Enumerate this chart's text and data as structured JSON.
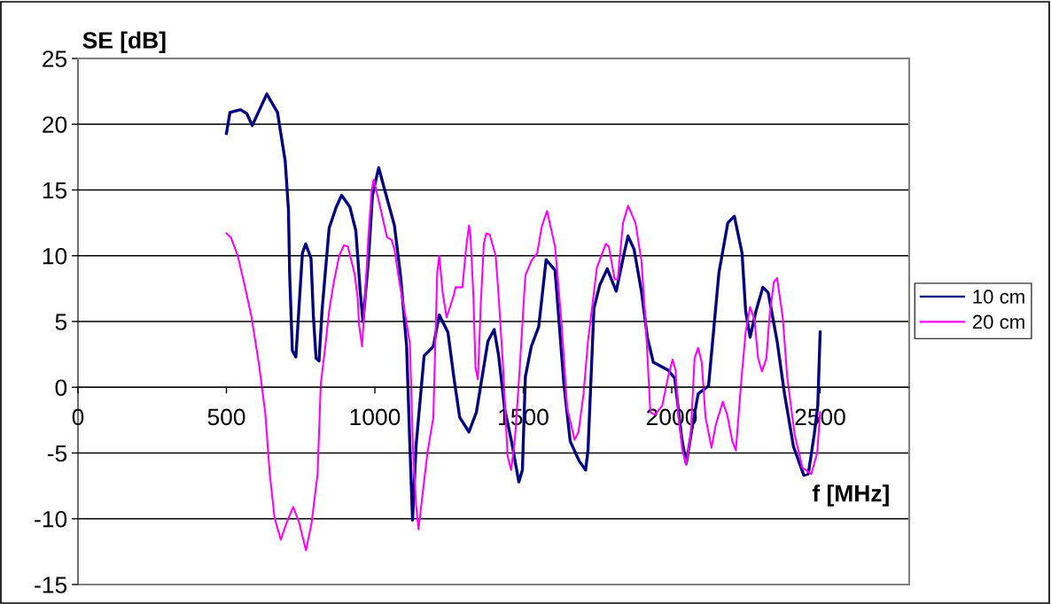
{
  "chart_data": {
    "type": "line",
    "xlabel": "f [MHz]",
    "ylabel": "SE [dB]",
    "xlim": [
      0,
      2800
    ],
    "ylim": [
      -15,
      25
    ],
    "xticks": [
      0,
      500,
      1000,
      1500,
      2000,
      2500
    ],
    "yticks": [
      -15,
      -10,
      -5,
      0,
      5,
      10,
      15,
      20,
      25
    ],
    "grid": "y",
    "legend": "right",
    "marker": "none",
    "line_style": "solid",
    "series": [
      {
        "name": "10 cm",
        "color": "#000080",
        "x": [
          500,
          512,
          548,
          569,
          587,
          636,
          672,
          698,
          709,
          713,
          722,
          734,
          756,
          767,
          785,
          793,
          802,
          812,
          822,
          846,
          870,
          888,
          916,
          936,
          951,
          960,
          978,
          992,
          1013,
          1032,
          1066,
          1087,
          1107,
          1118,
          1127,
          1139,
          1166,
          1197,
          1217,
          1246,
          1267,
          1286,
          1317,
          1342,
          1381,
          1402,
          1417,
          1437,
          1462,
          1485,
          1497,
          1507,
          1527,
          1552,
          1577,
          1607,
          1637,
          1658,
          1688,
          1710,
          1718,
          1738,
          1758,
          1783,
          1813,
          1838,
          1853,
          1873,
          1898,
          1918,
          1938,
          1988,
          2010,
          2034,
          2049,
          2068,
          2089,
          2124,
          2159,
          2189,
          2211,
          2237,
          2249,
          2264,
          2284,
          2307,
          2325,
          2355,
          2380,
          2410,
          2445,
          2460,
          2480,
          2492,
          2500
        ],
        "values": [
          19.3,
          20.9,
          21.1,
          20.8,
          19.9,
          22.3,
          20.9,
          17.2,
          13.5,
          8.6,
          2.8,
          2.3,
          10.2,
          10.9,
          9.8,
          5.4,
          2.2,
          2.0,
          5.8,
          12.1,
          13.7,
          14.6,
          13.7,
          11.9,
          7.2,
          5.0,
          9.5,
          14.6,
          16.7,
          15.1,
          12.3,
          8.4,
          3.1,
          -4.4,
          -10.1,
          -4.4,
          2.4,
          3.1,
          5.5,
          4.2,
          0.6,
          -2.3,
          -3.4,
          -1.9,
          3.5,
          4.4,
          2.4,
          -1.6,
          -4.3,
          -7.2,
          -6.3,
          0.8,
          3.1,
          4.6,
          9.7,
          8.9,
          0.2,
          -4.1,
          -5.6,
          -6.3,
          -4.8,
          6.0,
          7.8,
          9.0,
          7.3,
          10.0,
          11.5,
          10.5,
          7.3,
          3.8,
          1.9,
          1.3,
          0.7,
          -3.9,
          -5.8,
          -3.2,
          -0.5,
          0.1,
          8.7,
          12.5,
          13.0,
          10.2,
          5.8,
          3.8,
          5.8,
          7.6,
          7.2,
          3.5,
          -0.5,
          -4.5,
          -6.7,
          -6.6,
          -3.6,
          -1.4,
          4.2
        ]
      },
      {
        "name": "20 cm",
        "color": "#ff00ff",
        "x": [
          500,
          515,
          538,
          558,
          584,
          610,
          631,
          646,
          662,
          683,
          703,
          725,
          745,
          768,
          787,
          807,
          818,
          833,
          846,
          861,
          880,
          896,
          909,
          932,
          942,
          947,
          957,
          968,
          978,
          989,
          996,
          1020,
          1041,
          1056,
          1066,
          1082,
          1103,
          1118,
          1128,
          1139,
          1147,
          1162,
          1177,
          1197,
          1210,
          1217,
          1229,
          1242,
          1267,
          1272,
          1295,
          1307,
          1317,
          1322,
          1332,
          1339,
          1347,
          1357,
          1367,
          1375,
          1387,
          1407,
          1417,
          1432,
          1447,
          1459,
          1472,
          1487,
          1507,
          1527,
          1547,
          1562,
          1580,
          1592,
          1607,
          1628,
          1648,
          1673,
          1686,
          1703,
          1718,
          1748,
          1778,
          1788,
          1808,
          1818,
          1836,
          1853,
          1878,
          1898,
          1913,
          1928,
          1943,
          1968,
          1988,
          2003,
          2013,
          2023,
          2036,
          2049,
          2064,
          2077,
          2089,
          2101,
          2114,
          2134,
          2149,
          2172,
          2187,
          2204,
          2216,
          2234,
          2249,
          2264,
          2279,
          2291,
          2304,
          2319,
          2329,
          2344,
          2355,
          2374,
          2389,
          2414,
          2440,
          2470,
          2490,
          2500
        ],
        "values": [
          11.7,
          11.4,
          10.0,
          8.1,
          5.4,
          1.7,
          -2.0,
          -6.6,
          -9.9,
          -11.6,
          -10.3,
          -9.1,
          -10.3,
          -12.4,
          -10.3,
          -6.6,
          0.3,
          3.1,
          5.8,
          7.9,
          10.0,
          10.8,
          10.7,
          8.6,
          6.8,
          4.7,
          3.1,
          7.2,
          11.4,
          14.9,
          15.8,
          13.5,
          11.4,
          11.2,
          10.5,
          8.1,
          5.4,
          3.3,
          -4.4,
          -9.0,
          -10.8,
          -7.9,
          -5.0,
          -2.3,
          8.7,
          10.0,
          7.1,
          5.3,
          7.1,
          7.6,
          7.6,
          10.5,
          12.3,
          11.6,
          6.9,
          1.5,
          0.6,
          6.4,
          10.9,
          11.7,
          11.6,
          10.0,
          6.9,
          1.5,
          -5.2,
          -6.3,
          -3.9,
          1.1,
          8.5,
          9.6,
          10.2,
          12.2,
          13.4,
          12.2,
          10.7,
          5.1,
          -1.6,
          -4.0,
          -3.4,
          -0.5,
          3.5,
          9.1,
          10.9,
          10.7,
          8.2,
          8.2,
          12.5,
          13.8,
          12.5,
          9.6,
          4.6,
          -1.9,
          -2.1,
          -1.4,
          0.8,
          2.1,
          1.3,
          -2.3,
          -4.8,
          -5.9,
          -3.6,
          2.2,
          3.0,
          1.9,
          -2.3,
          -4.6,
          -2.8,
          -1.1,
          -2.1,
          -4.1,
          -4.8,
          0.4,
          4.2,
          6.1,
          5.1,
          2.2,
          1.2,
          2.2,
          5.3,
          8.0,
          8.3,
          5.3,
          0.8,
          -3.6,
          -6.1,
          -6.6,
          -5.0,
          -1.9
        ]
      }
    ]
  }
}
